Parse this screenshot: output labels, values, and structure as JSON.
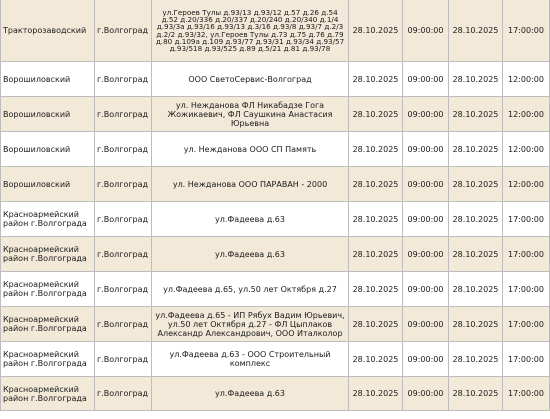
{
  "rows": [
    {
      "district": "Тракторозаводский",
      "city": "г.Волгоград",
      "address": "ул.Героев Тулы д.93/13 д.93/12 д.57 д.26 д.54 д.52 д.20/336 д.20/337 д.20/240 д.20/340 д.1/4 д.93/3а д.93/16 д.93/13 д.3/16 д.93/8 д.93/7 д.2/3 д.2/2 д.93/32, ул.Героев Тулы д.73 д.75 д.76 д.79 д.80 д.109а д.109 д.93/77 д.93/31 д.93/34 д.93/57 д.93/518 д.93/525 д.89 д.5/21 д.81 д.93/78",
      "date_start": "28.10.2025",
      "time_start": "09:00:00",
      "date_end": "28.10.2025",
      "time_end": "17:00:00"
    },
    {
      "district": "Ворошиловский",
      "city": "г.Волгоград",
      "address": "ООО СветоСервис-Волгоград",
      "date_start": "28.10.2025",
      "time_start": "09:00:00",
      "date_end": "28.10.2025",
      "time_end": "12:00:00"
    },
    {
      "district": "Ворошиловский",
      "city": "г.Волгоград",
      "address": "ул. Нежданова ФЛ Никабадзе Гога Жожикаевич, ФЛ Саушкина Анастасия Юрьевна",
      "date_start": "28.10.2025",
      "time_start": "09:00:00",
      "date_end": "28.10.2025",
      "time_end": "12:00:00"
    },
    {
      "district": "Ворошиловский",
      "city": "г.Волгоград",
      "address": "ул. Нежданова ООО СП Память",
      "date_start": "28.10.2025",
      "time_start": "09:00:00",
      "date_end": "28.10.2025",
      "time_end": "12:00:00"
    },
    {
      "district": "Ворошиловский",
      "city": "г.Волгоград",
      "address": "ул. Нежданова ООО ПАРАВАН - 2000",
      "date_start": "28.10.2025",
      "time_start": "09:00:00",
      "date_end": "28.10.2025",
      "time_end": "12:00:00"
    },
    {
      "district": "Красноармейский район г.Волгограда",
      "city": "г.Волгоград",
      "address": "ул.Фадеева д.63",
      "date_start": "28.10.2025",
      "time_start": "09:00:00",
      "date_end": "28.10.2025",
      "time_end": "17:00:00"
    },
    {
      "district": "Красноармейский район г.Волгограда",
      "city": "г.Волгоград",
      "address": "ул.Фадеева д.63",
      "date_start": "28.10.2025",
      "time_start": "09:00:00",
      "date_end": "28.10.2025",
      "time_end": "17:00:00"
    },
    {
      "district": "Красноармейский район г.Волгограда",
      "city": "г.Волгоград",
      "address": "ул.Фадеева д.65, ул.50 лет Октября д.27",
      "date_start": "28.10.2025",
      "time_start": "09:00:00",
      "date_end": "28.10.2025",
      "time_end": "17:00:00"
    },
    {
      "district": "Красноармейский район г.Волгограда",
      "city": "г.Волгоград",
      "address": "ул.Фадеева д.65 - ИП Рябух Вадим Юрьевич, ул.50 лет Октября д.27 - ФЛ Цыплаков Александр Александрович, ООО Италколор",
      "date_start": "28.10.2025",
      "time_start": "09:00:00",
      "date_end": "28.10.2025",
      "time_end": "17:00:00"
    },
    {
      "district": "Красноармейский район г.Волгограда",
      "city": "г.Волгоград",
      "address": "ул.Фадеева д.63 - ООО Строительный комплекс",
      "date_start": "28.10.2025",
      "time_start": "09:00:00",
      "date_end": "28.10.2025",
      "time_end": "17:00:00"
    },
    {
      "district": "Красноармейский район г.Волгограда",
      "city": "г.Волгоград",
      "address": "ул.Фадеева д.63",
      "date_start": "28.10.2025",
      "time_start": "09:00:00",
      "date_end": "28.10.2025",
      "time_end": "17:00:00"
    }
  ],
  "colors": {
    "row_alt": "#f2e9d8",
    "row_plain": "#ffffff",
    "border": "#bdbdbd",
    "text": "#1a1a1a"
  }
}
